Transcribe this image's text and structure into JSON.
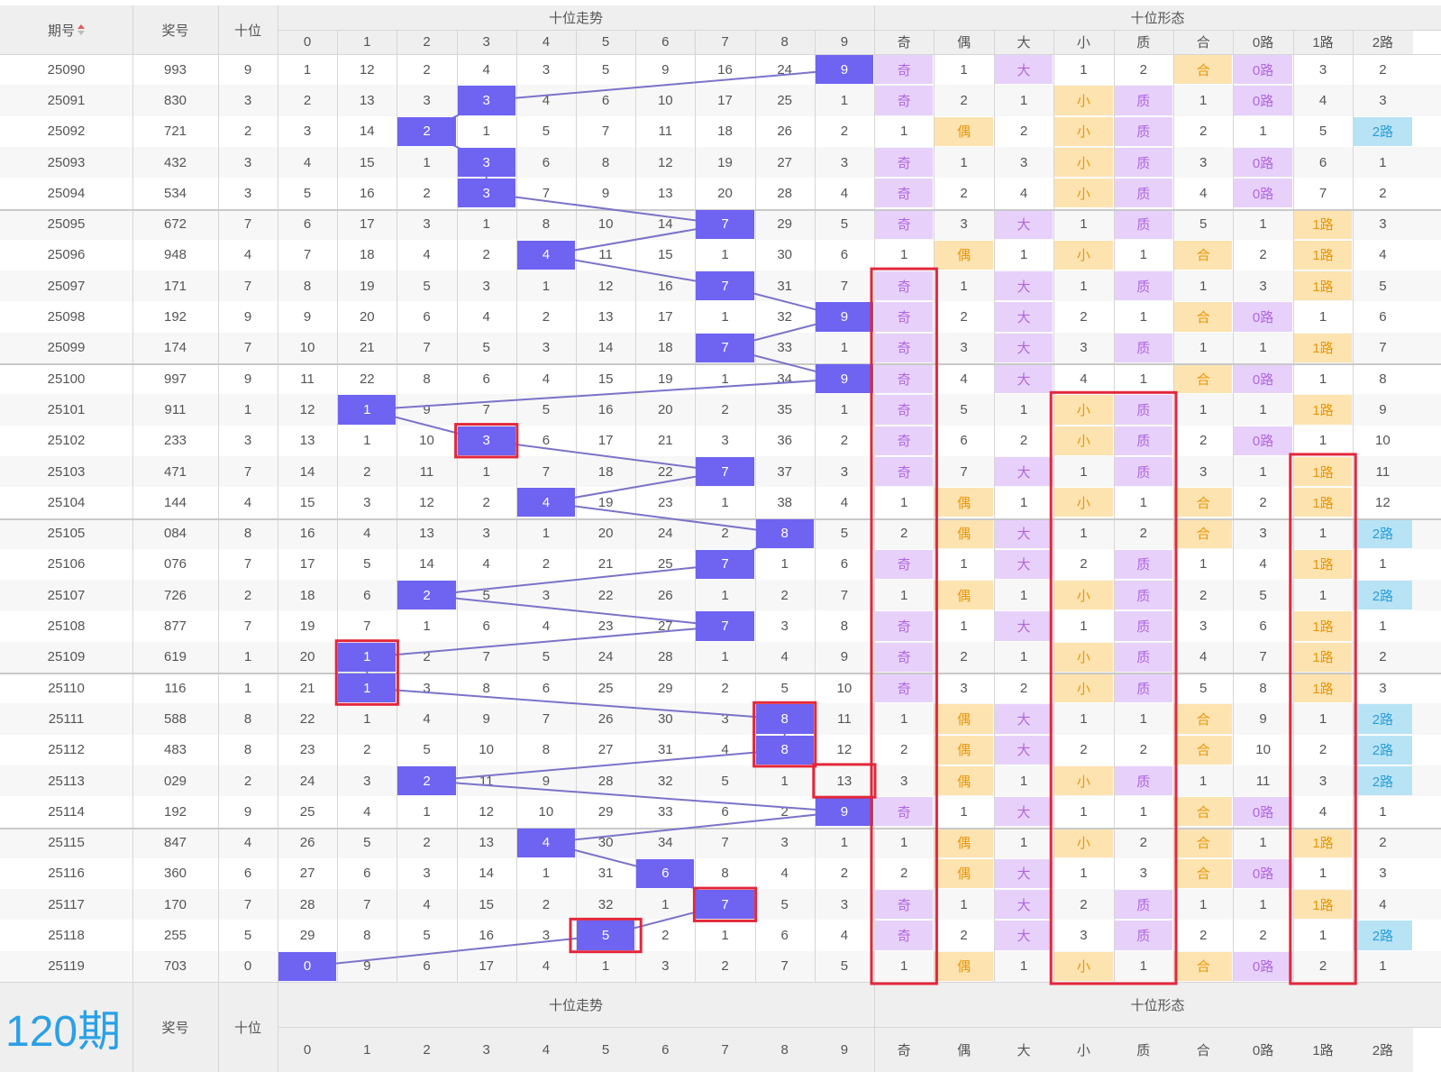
{
  "header": {
    "col_issue": "期号",
    "col_prize": "奖号",
    "col_tens": "十位",
    "group_trend": "十位走势",
    "group_form": "十位形态",
    "digits": [
      "0",
      "1",
      "2",
      "3",
      "4",
      "5",
      "6",
      "7",
      "8",
      "9"
    ],
    "form_cols": [
      "奇",
      "偶",
      "大",
      "小",
      "质",
      "合",
      "0路",
      "1路",
      "2路"
    ]
  },
  "footer": {
    "count_label": "120期",
    "col_prize": "奖号",
    "col_tens": "十位",
    "group_trend": "十位走势",
    "group_form": "十位形态",
    "digits": [
      "0",
      "1",
      "2",
      "3",
      "4",
      "5",
      "6",
      "7",
      "8",
      "9"
    ],
    "form_cols": [
      "奇",
      "偶",
      "大",
      "小",
      "质",
      "合",
      "0路",
      "1路",
      "2路"
    ]
  },
  "colors": {
    "hit": "#6f63f2",
    "purple_tag": "#e7d1fb",
    "orange_tag": "#fde3b0",
    "blue_tag": "#b8e3f5",
    "highlight_box": "#e3273b",
    "count_label": "#2aa0e6"
  },
  "rows": [
    {
      "issue": "25090",
      "prize": "993",
      "tens": "9",
      "trend": [
        "1",
        "12",
        "2",
        "4",
        "3",
        "5",
        "9",
        "16",
        "24",
        "9"
      ],
      "form": [
        "奇",
        "1",
        "大",
        "1",
        "2",
        "合",
        "0路",
        "3",
        "2"
      ]
    },
    {
      "issue": "25091",
      "prize": "830",
      "tens": "3",
      "trend": [
        "2",
        "13",
        "3",
        "3",
        "4",
        "6",
        "10",
        "17",
        "25",
        "1"
      ],
      "form": [
        "奇",
        "2",
        "1",
        "小",
        "质",
        "1",
        "0路",
        "4",
        "3"
      ]
    },
    {
      "issue": "25092",
      "prize": "721",
      "tens": "2",
      "trend": [
        "3",
        "14",
        "2",
        "1",
        "5",
        "7",
        "11",
        "18",
        "26",
        "2"
      ],
      "form": [
        "1",
        "偶",
        "2",
        "小",
        "质",
        "2",
        "1",
        "5",
        "2路"
      ]
    },
    {
      "issue": "25093",
      "prize": "432",
      "tens": "3",
      "trend": [
        "4",
        "15",
        "1",
        "3",
        "6",
        "8",
        "12",
        "19",
        "27",
        "3"
      ],
      "form": [
        "奇",
        "1",
        "3",
        "小",
        "质",
        "3",
        "0路",
        "6",
        "1"
      ]
    },
    {
      "issue": "25094",
      "prize": "534",
      "tens": "3",
      "trend": [
        "5",
        "16",
        "2",
        "3",
        "7",
        "9",
        "13",
        "20",
        "28",
        "4"
      ],
      "form": [
        "奇",
        "2",
        "4",
        "小",
        "质",
        "4",
        "0路",
        "7",
        "2"
      ]
    },
    {
      "issue": "25095",
      "prize": "672",
      "tens": "7",
      "trend": [
        "6",
        "17",
        "3",
        "1",
        "8",
        "10",
        "14",
        "7",
        "29",
        "5"
      ],
      "form": [
        "奇",
        "3",
        "大",
        "1",
        "质",
        "5",
        "1",
        "1路",
        "3"
      ]
    },
    {
      "issue": "25096",
      "prize": "948",
      "tens": "4",
      "trend": [
        "7",
        "18",
        "4",
        "2",
        "4",
        "11",
        "15",
        "1",
        "30",
        "6"
      ],
      "form": [
        "1",
        "偶",
        "1",
        "小",
        "1",
        "合",
        "2",
        "1路",
        "4"
      ]
    },
    {
      "issue": "25097",
      "prize": "171",
      "tens": "7",
      "trend": [
        "8",
        "19",
        "5",
        "3",
        "1",
        "12",
        "16",
        "7",
        "31",
        "7"
      ],
      "form": [
        "奇",
        "1",
        "大",
        "1",
        "质",
        "1",
        "3",
        "1路",
        "5"
      ]
    },
    {
      "issue": "25098",
      "prize": "192",
      "tens": "9",
      "trend": [
        "9",
        "20",
        "6",
        "4",
        "2",
        "13",
        "17",
        "1",
        "32",
        "9"
      ],
      "form": [
        "奇",
        "2",
        "大",
        "2",
        "1",
        "合",
        "0路",
        "1",
        "6"
      ]
    },
    {
      "issue": "25099",
      "prize": "174",
      "tens": "7",
      "trend": [
        "10",
        "21",
        "7",
        "5",
        "3",
        "14",
        "18",
        "7",
        "33",
        "1"
      ],
      "form": [
        "奇",
        "3",
        "大",
        "3",
        "质",
        "1",
        "1",
        "1路",
        "7"
      ]
    },
    {
      "issue": "25100",
      "prize": "997",
      "tens": "9",
      "trend": [
        "11",
        "22",
        "8",
        "6",
        "4",
        "15",
        "19",
        "1",
        "34",
        "9"
      ],
      "form": [
        "奇",
        "4",
        "大",
        "4",
        "1",
        "合",
        "0路",
        "1",
        "8"
      ]
    },
    {
      "issue": "25101",
      "prize": "911",
      "tens": "1",
      "trend": [
        "12",
        "1",
        "9",
        "7",
        "5",
        "16",
        "20",
        "2",
        "35",
        "1"
      ],
      "form": [
        "奇",
        "5",
        "1",
        "小",
        "质",
        "1",
        "1",
        "1路",
        "9"
      ]
    },
    {
      "issue": "25102",
      "prize": "233",
      "tens": "3",
      "trend": [
        "13",
        "1",
        "10",
        "3",
        "6",
        "17",
        "21",
        "3",
        "36",
        "2"
      ],
      "form": [
        "奇",
        "6",
        "2",
        "小",
        "质",
        "2",
        "0路",
        "1",
        "10"
      ]
    },
    {
      "issue": "25103",
      "prize": "471",
      "tens": "7",
      "trend": [
        "14",
        "2",
        "11",
        "1",
        "7",
        "18",
        "22",
        "7",
        "37",
        "3"
      ],
      "form": [
        "奇",
        "7",
        "大",
        "1",
        "质",
        "3",
        "1",
        "1路",
        "11"
      ]
    },
    {
      "issue": "25104",
      "prize": "144",
      "tens": "4",
      "trend": [
        "15",
        "3",
        "12",
        "2",
        "4",
        "19",
        "23",
        "1",
        "38",
        "4"
      ],
      "form": [
        "1",
        "偶",
        "1",
        "小",
        "1",
        "合",
        "2",
        "1路",
        "12"
      ]
    },
    {
      "issue": "25105",
      "prize": "084",
      "tens": "8",
      "trend": [
        "16",
        "4",
        "13",
        "3",
        "1",
        "20",
        "24",
        "2",
        "8",
        "5"
      ],
      "form": [
        "2",
        "偶",
        "大",
        "1",
        "2",
        "合",
        "3",
        "1",
        "2路"
      ]
    },
    {
      "issue": "25106",
      "prize": "076",
      "tens": "7",
      "trend": [
        "17",
        "5",
        "14",
        "4",
        "2",
        "21",
        "25",
        "7",
        "1",
        "6"
      ],
      "form": [
        "奇",
        "1",
        "大",
        "2",
        "质",
        "1",
        "4",
        "1路",
        "1"
      ]
    },
    {
      "issue": "25107",
      "prize": "726",
      "tens": "2",
      "trend": [
        "18",
        "6",
        "2",
        "5",
        "3",
        "22",
        "26",
        "1",
        "2",
        "7"
      ],
      "form": [
        "1",
        "偶",
        "1",
        "小",
        "质",
        "2",
        "5",
        "1",
        "2路"
      ]
    },
    {
      "issue": "25108",
      "prize": "877",
      "tens": "7",
      "trend": [
        "19",
        "7",
        "1",
        "6",
        "4",
        "23",
        "27",
        "7",
        "3",
        "8"
      ],
      "form": [
        "奇",
        "1",
        "大",
        "1",
        "质",
        "3",
        "6",
        "1路",
        "1"
      ]
    },
    {
      "issue": "25109",
      "prize": "619",
      "tens": "1",
      "trend": [
        "20",
        "1",
        "2",
        "7",
        "5",
        "24",
        "28",
        "1",
        "4",
        "9"
      ],
      "form": [
        "奇",
        "2",
        "1",
        "小",
        "质",
        "4",
        "7",
        "1路",
        "2"
      ]
    },
    {
      "issue": "25110",
      "prize": "116",
      "tens": "1",
      "trend": [
        "21",
        "1",
        "3",
        "8",
        "6",
        "25",
        "29",
        "2",
        "5",
        "10"
      ],
      "form": [
        "奇",
        "3",
        "2",
        "小",
        "质",
        "5",
        "8",
        "1路",
        "3"
      ]
    },
    {
      "issue": "25111",
      "prize": "588",
      "tens": "8",
      "trend": [
        "22",
        "1",
        "4",
        "9",
        "7",
        "26",
        "30",
        "3",
        "8",
        "11"
      ],
      "form": [
        "1",
        "偶",
        "大",
        "1",
        "1",
        "合",
        "9",
        "1",
        "2路"
      ]
    },
    {
      "issue": "25112",
      "prize": "483",
      "tens": "8",
      "trend": [
        "23",
        "2",
        "5",
        "10",
        "8",
        "27",
        "31",
        "4",
        "8",
        "12"
      ],
      "form": [
        "2",
        "偶",
        "大",
        "2",
        "2",
        "合",
        "10",
        "2",
        "2路"
      ]
    },
    {
      "issue": "25113",
      "prize": "029",
      "tens": "2",
      "trend": [
        "24",
        "3",
        "2",
        "11",
        "9",
        "28",
        "32",
        "5",
        "1",
        "13"
      ],
      "form": [
        "3",
        "偶",
        "1",
        "小",
        "质",
        "1",
        "11",
        "3",
        "2路"
      ]
    },
    {
      "issue": "25114",
      "prize": "192",
      "tens": "9",
      "trend": [
        "25",
        "4",
        "1",
        "12",
        "10",
        "29",
        "33",
        "6",
        "2",
        "9"
      ],
      "form": [
        "奇",
        "1",
        "大",
        "1",
        "1",
        "合",
        "0路",
        "4",
        "1"
      ]
    },
    {
      "issue": "25115",
      "prize": "847",
      "tens": "4",
      "trend": [
        "26",
        "5",
        "2",
        "13",
        "4",
        "30",
        "34",
        "7",
        "3",
        "1"
      ],
      "form": [
        "1",
        "偶",
        "1",
        "小",
        "2",
        "合",
        "1",
        "1路",
        "2"
      ]
    },
    {
      "issue": "25116",
      "prize": "360",
      "tens": "6",
      "trend": [
        "27",
        "6",
        "3",
        "14",
        "1",
        "31",
        "6",
        "8",
        "4",
        "2"
      ],
      "form": [
        "2",
        "偶",
        "大",
        "1",
        "3",
        "合",
        "0路",
        "1",
        "3"
      ]
    },
    {
      "issue": "25117",
      "prize": "170",
      "tens": "7",
      "trend": [
        "28",
        "7",
        "4",
        "15",
        "2",
        "32",
        "1",
        "7",
        "5",
        "3"
      ],
      "form": [
        "奇",
        "1",
        "大",
        "2",
        "质",
        "1",
        "1",
        "1路",
        "4"
      ]
    },
    {
      "issue": "25118",
      "prize": "255",
      "tens": "5",
      "trend": [
        "29",
        "8",
        "5",
        "16",
        "3",
        "5",
        "2",
        "1",
        "6",
        "4"
      ],
      "form": [
        "奇",
        "2",
        "大",
        "3",
        "质",
        "2",
        "2",
        "1",
        "2路"
      ]
    },
    {
      "issue": "25119",
      "prize": "703",
      "tens": "0",
      "trend": [
        "0",
        "9",
        "6",
        "17",
        "4",
        "1",
        "3",
        "2",
        "7",
        "5"
      ],
      "form": [
        "1",
        "偶",
        "1",
        "小",
        "1",
        "合",
        "0路",
        "2",
        "1"
      ]
    }
  ]
}
